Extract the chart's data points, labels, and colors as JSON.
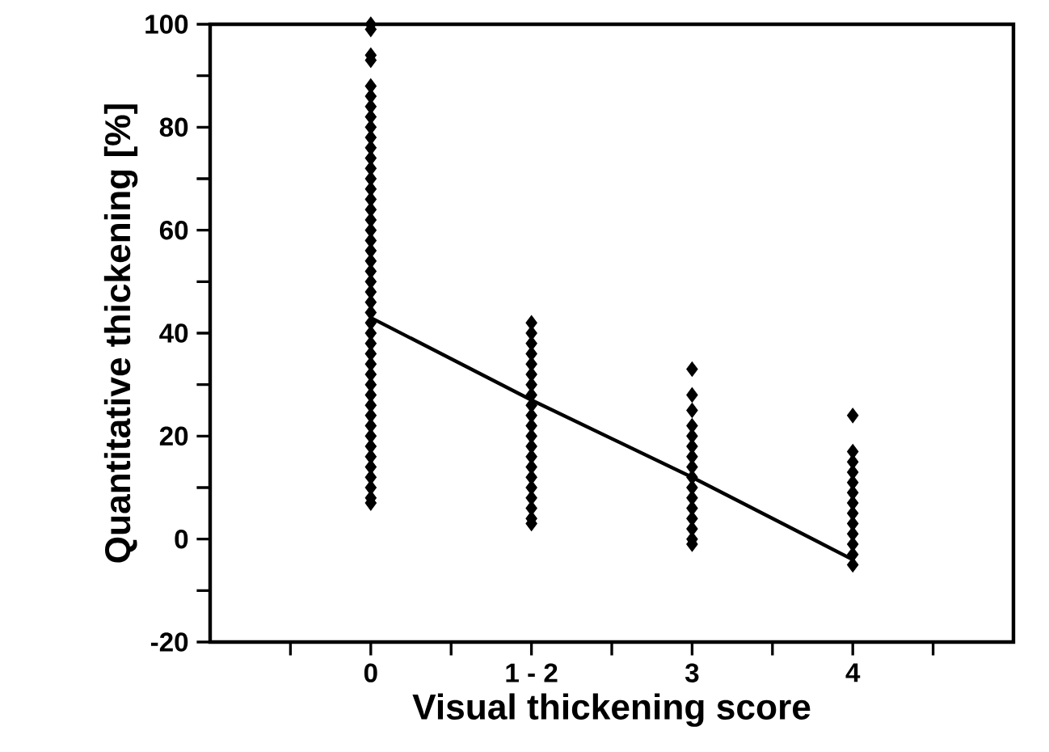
{
  "chart_data": {
    "type": "scatter",
    "xlabel": "Visual thickening score",
    "ylabel": "Quantitative thickening [%]",
    "categories": [
      "0",
      "1 - 2",
      "3",
      "4"
    ],
    "ylim": [
      -20,
      100
    ],
    "yticks": [
      -20,
      {
        "value": -10,
        "label": null
      },
      0,
      {
        "value": 10,
        "label": null
      },
      20,
      {
        "value": 30,
        "label": null
      },
      40,
      {
        "value": 50,
        "label": null
      },
      60,
      {
        "value": 70,
        "label": null
      },
      80,
      {
        "value": 90,
        "label": null
      },
      100
    ],
    "series": [
      {
        "marker": "diamond",
        "color": "#000000",
        "x": [
          "0",
          "0",
          "0",
          "0",
          "0",
          "0",
          "0",
          "0",
          "0",
          "0",
          "0",
          "0",
          "0",
          "0",
          "0",
          "0",
          "0",
          "0",
          "0",
          "0",
          "0",
          "0",
          "0",
          "0",
          "0",
          "0",
          "0",
          "0",
          "0",
          "0",
          "0",
          "0",
          "0",
          "0",
          "0",
          "0",
          "0",
          "0",
          "0",
          "0",
          "0",
          "0",
          "0",
          "0",
          "0",
          "0",
          "1 - 2",
          "1 - 2",
          "1 - 2",
          "1 - 2",
          "1 - 2",
          "1 - 2",
          "1 - 2",
          "1 - 2",
          "1 - 2",
          "1 - 2",
          "1 - 2",
          "1 - 2",
          "1 - 2",
          "1 - 2",
          "1 - 2",
          "1 - 2",
          "1 - 2",
          "1 - 2",
          "1 - 2",
          "1 - 2",
          "1 - 2",
          "3",
          "3",
          "3",
          "3",
          "3",
          "3",
          "3",
          "3",
          "3",
          "3",
          "3",
          "3",
          "3",
          "3",
          "3",
          "3",
          "4",
          "4",
          "4",
          "4",
          "4",
          "4",
          "4",
          "4",
          "4",
          "4",
          "4",
          "4",
          "4"
        ],
        "values": [
          100,
          99,
          94,
          93,
          88,
          86,
          84,
          82,
          80,
          78,
          76,
          74,
          72,
          70,
          68,
          66,
          64,
          62,
          60,
          58,
          56,
          54,
          52,
          50,
          48,
          46,
          44,
          42,
          40,
          38,
          36,
          34,
          32,
          30,
          28,
          26,
          24,
          22,
          20,
          18,
          16,
          14,
          12,
          10,
          8,
          7,
          42,
          40,
          38,
          36,
          34,
          32,
          30,
          28,
          26,
          24,
          22,
          20,
          18,
          16,
          14,
          12,
          10,
          8,
          6,
          4,
          3,
          33,
          28,
          25,
          22,
          20,
          18,
          16,
          14,
          12,
          10,
          8,
          6,
          4,
          2,
          0,
          -1,
          24,
          17,
          15,
          13,
          11,
          9,
          7,
          5,
          3,
          1,
          -1,
          -3,
          -5
        ]
      },
      {
        "type": "line",
        "marker": "none",
        "line_style": "solid",
        "color": "#000000",
        "values": [
          43,
          27,
          12,
          -4
        ]
      }
    ]
  }
}
